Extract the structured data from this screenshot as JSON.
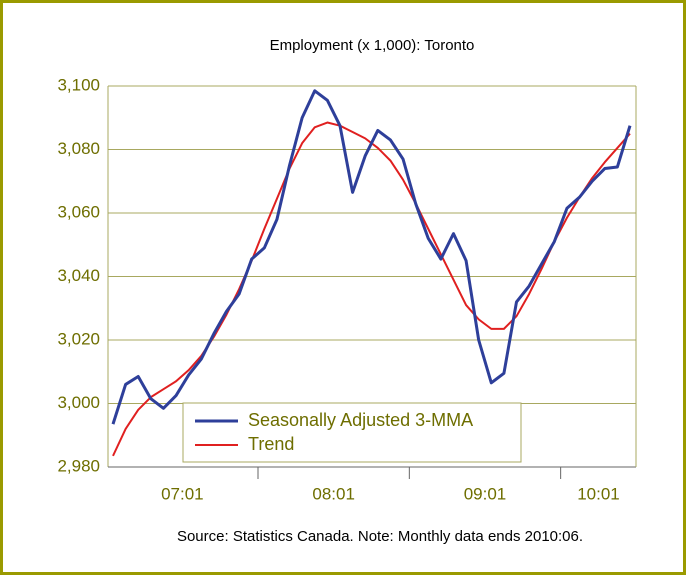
{
  "chart_data": {
    "type": "line",
    "title": "Employment (x 1,000): Toronto",
    "note": "Source: Statistics Canada. Note: Monthly data ends 2010:06.",
    "categories": [
      "07:01",
      null,
      null,
      null,
      null,
      null,
      null,
      null,
      null,
      null,
      null,
      null,
      "08:01",
      null,
      null,
      null,
      null,
      null,
      null,
      null,
      null,
      null,
      null,
      null,
      "09:01",
      null,
      null,
      null,
      null,
      null,
      null,
      null,
      null,
      null,
      null,
      null,
      "10:01",
      null,
      null,
      null,
      null,
      null
    ],
    "series": [
      {
        "name": "Seasonally Adjusted 3-MMA",
        "color": "#2e3f9a",
        "values": [
          2993.5,
          3006,
          3008.5,
          3001.5,
          2998.5,
          3002.5,
          3009,
          3014,
          3022,
          3029,
          3034.5,
          3045.5,
          3049,
          3058,
          3075,
          3090,
          3098.5,
          3095.5,
          3087.5,
          3066.5,
          3078,
          3086,
          3083,
          3077,
          3063,
          3052,
          3045.5,
          3053.5,
          3045,
          3020,
          3006.5,
          3009.5,
          3032,
          3037,
          3044,
          3051,
          3061.5,
          3065,
          3070,
          3074,
          3074.5,
          3087.5
        ]
      },
      {
        "name": "Trend",
        "color": "#e02020",
        "values": [
          2983.5,
          2992,
          2998,
          3002,
          3004.5,
          3007,
          3010.5,
          3015,
          3021,
          3028,
          3036,
          3045,
          3055,
          3064.5,
          3074,
          3082,
          3087,
          3088.5,
          3087.5,
          3085.5,
          3083.5,
          3080.5,
          3076.5,
          3070.5,
          3063,
          3055,
          3047,
          3039,
          3031,
          3026.5,
          3023.5,
          3023.5,
          3027.5,
          3034.5,
          3042.5,
          3051,
          3058.5,
          3065,
          3071,
          3076,
          3080.5,
          3085
        ]
      }
    ],
    "ylim": [
      2980,
      3100
    ],
    "yticks": [
      {
        "value": 2980,
        "label": "2,980"
      },
      {
        "value": 3000,
        "label": "3,000"
      },
      {
        "value": 3020,
        "label": "3,020"
      },
      {
        "value": 3040,
        "label": "3,040"
      },
      {
        "value": 3060,
        "label": "3,060"
      },
      {
        "value": 3080,
        "label": "3,080"
      },
      {
        "value": 3100,
        "label": "3,100"
      }
    ],
    "grid": true
  }
}
